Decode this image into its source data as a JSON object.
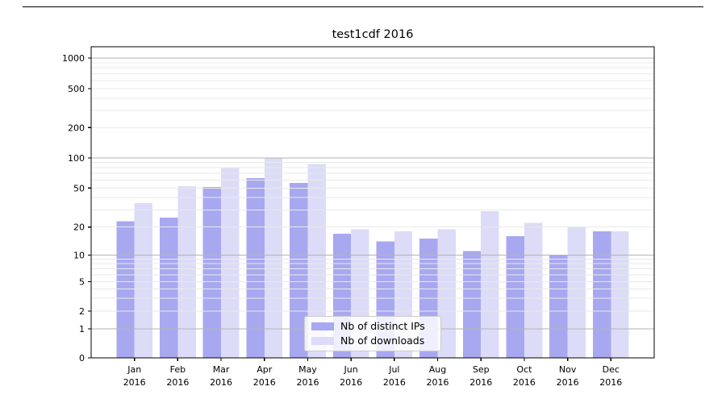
{
  "page": {
    "title": "test1cdf 2016"
  },
  "chart_data": {
    "type": "bar",
    "title": "test1cdf 2016",
    "categories": [
      "Jan",
      "Feb",
      "Mar",
      "Apr",
      "May",
      "Jun",
      "Jul",
      "Aug",
      "Sep",
      "Oct",
      "Nov",
      "Dec"
    ],
    "year_label": "2016",
    "series": [
      {
        "name": "Nb of distinct IPs",
        "color": "#a8a8f0",
        "values": [
          23,
          25,
          51,
          63,
          56,
          17,
          14,
          15,
          11,
          16,
          10,
          18
        ]
      },
      {
        "name": "Nb of downloads",
        "color": "#dcdcf8",
        "values": [
          35,
          52,
          79,
          100,
          87,
          19,
          18,
          19,
          29,
          22,
          20,
          18
        ]
      }
    ],
    "y_ticks": [
      0,
      1,
      2,
      5,
      10,
      20,
      50,
      100,
      200,
      500,
      1000
    ],
    "ylim": [
      0,
      1270
    ],
    "yscale": "symlog-like: logarithmic above 1, linear 0 to 1",
    "grid": "solid gray lines at 1/10/100/1000, faint minor lines at 2-9 per decade, drawn over bars",
    "legend_position": "lower center"
  }
}
